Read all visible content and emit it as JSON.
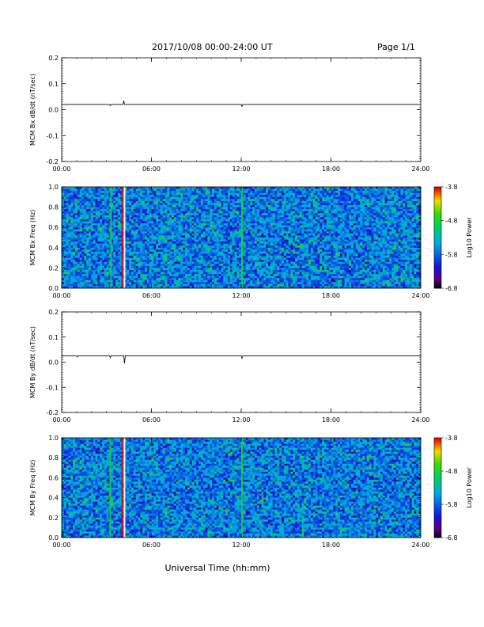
{
  "header": {
    "date_range": "2017/10/08  00:00-24:00 UT",
    "page": "Page 1/1"
  },
  "chart_data": [
    {
      "type": "line",
      "ylabel": "MCM Bx dB/dt (nT/sec)",
      "ylim": [
        -0.2,
        0.2
      ],
      "y_ticks": [
        "0.2",
        "0.1",
        "0.0",
        "-0.1",
        "-0.2"
      ],
      "xlim_hours": [
        0,
        24
      ],
      "x_ticks": [
        "00:00",
        "06:00",
        "12:00",
        "18:00",
        "24:00"
      ],
      "series": [
        {
          "x_hours": [
            0,
            3.2,
            3.25,
            3.3,
            4.1,
            4.15,
            4.2,
            12.0,
            12.05,
            12.1,
            24
          ],
          "values": [
            0.02,
            0.02,
            0.015,
            0.02,
            0.02,
            0.035,
            0.02,
            0.02,
            0.012,
            0.02,
            0.02
          ]
        }
      ]
    },
    {
      "type": "heatmap",
      "ylabel": "MCM Bx Freq (Hz)",
      "ylim": [
        0.0,
        1.0
      ],
      "y_ticks": [
        "1.0",
        "0.8",
        "0.6",
        "0.4",
        "0.2",
        "0.0"
      ],
      "x_ticks": [
        "00:00",
        "06:00",
        "12:00",
        "18:00",
        "24:00"
      ],
      "colorbar_label": "Log10 Power",
      "colorbar_ticks": [
        "-3.8",
        "-4.8",
        "-5.8",
        "-6.8"
      ],
      "colorbar_range": [
        -6.8,
        -3.8
      ],
      "background_level": -5.8,
      "stripes": [
        {
          "hour": 3.3,
          "level": -4.8
        },
        {
          "hour": 4.05,
          "level": -3.8
        },
        {
          "hour": 4.2,
          "level": -6.8
        },
        {
          "hour": 12.05,
          "level": -4.8
        }
      ]
    },
    {
      "type": "line",
      "ylabel": "MCM By dB/dt (nT/sec)",
      "ylim": [
        -0.2,
        0.2
      ],
      "y_ticks": [
        "0.2",
        "0.1",
        "0.0",
        "-0.1",
        "-0.2"
      ],
      "xlim_hours": [
        0,
        24
      ],
      "x_ticks": [
        "00:00",
        "06:00",
        "12:00",
        "18:00",
        "24:00"
      ],
      "series": [
        {
          "x_hours": [
            0,
            1.0,
            1.05,
            1.1,
            3.2,
            3.25,
            3.3,
            4.15,
            4.2,
            4.25,
            12.0,
            12.05,
            12.1,
            24
          ],
          "values": [
            0.025,
            0.025,
            0.02,
            0.025,
            0.025,
            0.018,
            0.025,
            0.025,
            -0.005,
            0.025,
            0.025,
            0.015,
            0.025,
            0.025
          ]
        }
      ]
    },
    {
      "type": "heatmap",
      "ylabel": "MCM By Freq (Hz)",
      "ylim": [
        0.0,
        1.0
      ],
      "y_ticks": [
        "1.0",
        "0.8",
        "0.6",
        "0.4",
        "0.2",
        "0.0"
      ],
      "x_ticks": [
        "00:00",
        "06:00",
        "12:00",
        "18:00",
        "24:00"
      ],
      "xlabel": "Universal Time (hh:mm)",
      "colorbar_label": "Log10 Power",
      "colorbar_ticks": [
        "-3.8",
        "-4.8",
        "-5.8",
        "-6.8"
      ],
      "colorbar_range": [
        -6.8,
        -3.8
      ],
      "background_level": -5.8,
      "stripes": [
        {
          "hour": 3.25,
          "level": -4.8
        },
        {
          "hour": 4.05,
          "level": -3.8
        },
        {
          "hour": 4.2,
          "level": -6.8
        },
        {
          "hour": 12.05,
          "level": -4.8
        }
      ]
    }
  ]
}
